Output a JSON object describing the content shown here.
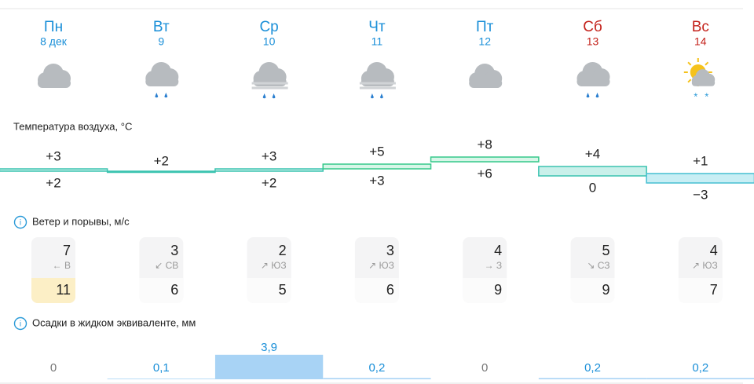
{
  "days": [
    {
      "weekday": "Пн",
      "date": "8 дек",
      "weekend": false,
      "icon": "cloud",
      "temperature": {
        "high": {
          "value": 3,
          "label": "+3"
        },
        "low": {
          "value": 2,
          "label": "+2"
        }
      },
      "wind": {
        "speed": "7",
        "direction": "← В",
        "gust": "11",
        "gust_warning": true
      },
      "precipitation": {
        "value": 0,
        "label": "0"
      }
    },
    {
      "weekday": "Вт",
      "date": "9",
      "weekend": false,
      "icon": "rain",
      "temperature": {
        "high": {
          "value": 2,
          "label": "+2"
        },
        "low": null
      },
      "wind": {
        "speed": "3",
        "direction": "↙ СВ",
        "gust": "6",
        "gust_warning": false
      },
      "precipitation": {
        "value": 0.1,
        "label": "0,1"
      }
    },
    {
      "weekday": "Ср",
      "date": "10",
      "weekend": false,
      "icon": "rain-fog",
      "temperature": {
        "high": {
          "value": 3,
          "label": "+3"
        },
        "low": {
          "value": 2,
          "label": "+2"
        }
      },
      "wind": {
        "speed": "2",
        "direction": "↗ ЮЗ",
        "gust": "5",
        "gust_warning": false
      },
      "precipitation": {
        "value": 3.9,
        "label": "3,9"
      }
    },
    {
      "weekday": "Чт",
      "date": "11",
      "weekend": false,
      "icon": "rain-fog",
      "temperature": {
        "high": {
          "value": 5,
          "label": "+5"
        },
        "low": {
          "value": 3,
          "label": "+3"
        }
      },
      "wind": {
        "speed": "3",
        "direction": "↗ ЮЗ",
        "gust": "6",
        "gust_warning": false
      },
      "precipitation": {
        "value": 0.2,
        "label": "0,2"
      }
    },
    {
      "weekday": "Пт",
      "date": "12",
      "weekend": false,
      "icon": "cloud",
      "temperature": {
        "high": {
          "value": 8,
          "label": "+8"
        },
        "low": {
          "value": 6,
          "label": "+6"
        }
      },
      "wind": {
        "speed": "4",
        "direction": "→ З",
        "gust": "9",
        "gust_warning": false
      },
      "precipitation": {
        "value": 0,
        "label": "0"
      }
    },
    {
      "weekday": "Сб",
      "date": "13",
      "weekend": true,
      "icon": "rain",
      "temperature": {
        "high": {
          "value": 4,
          "label": "+4"
        },
        "low": {
          "value": 0,
          "label": "0"
        }
      },
      "wind": {
        "speed": "5",
        "direction": "↘ СЗ",
        "gust": "9",
        "gust_warning": false
      },
      "precipitation": {
        "value": 0.2,
        "label": "0,2"
      }
    },
    {
      "weekday": "Вс",
      "date": "14",
      "weekend": true,
      "icon": "sun-snow",
      "temperature": {
        "high": {
          "value": 1,
          "label": "+1"
        },
        "low": {
          "value": -3,
          "label": "−3"
        }
      },
      "wind": {
        "speed": "4",
        "direction": "↗ ЮЗ",
        "gust": "7",
        "gust_warning": false
      },
      "precipitation": {
        "value": 0.2,
        "label": "0,2"
      }
    }
  ],
  "sections": {
    "temperature": "Температура воздуха, °C",
    "wind": "Ветер и порывы, м/с",
    "precipitation": "Осадки в жидком эквиваленте, мм"
  }
}
